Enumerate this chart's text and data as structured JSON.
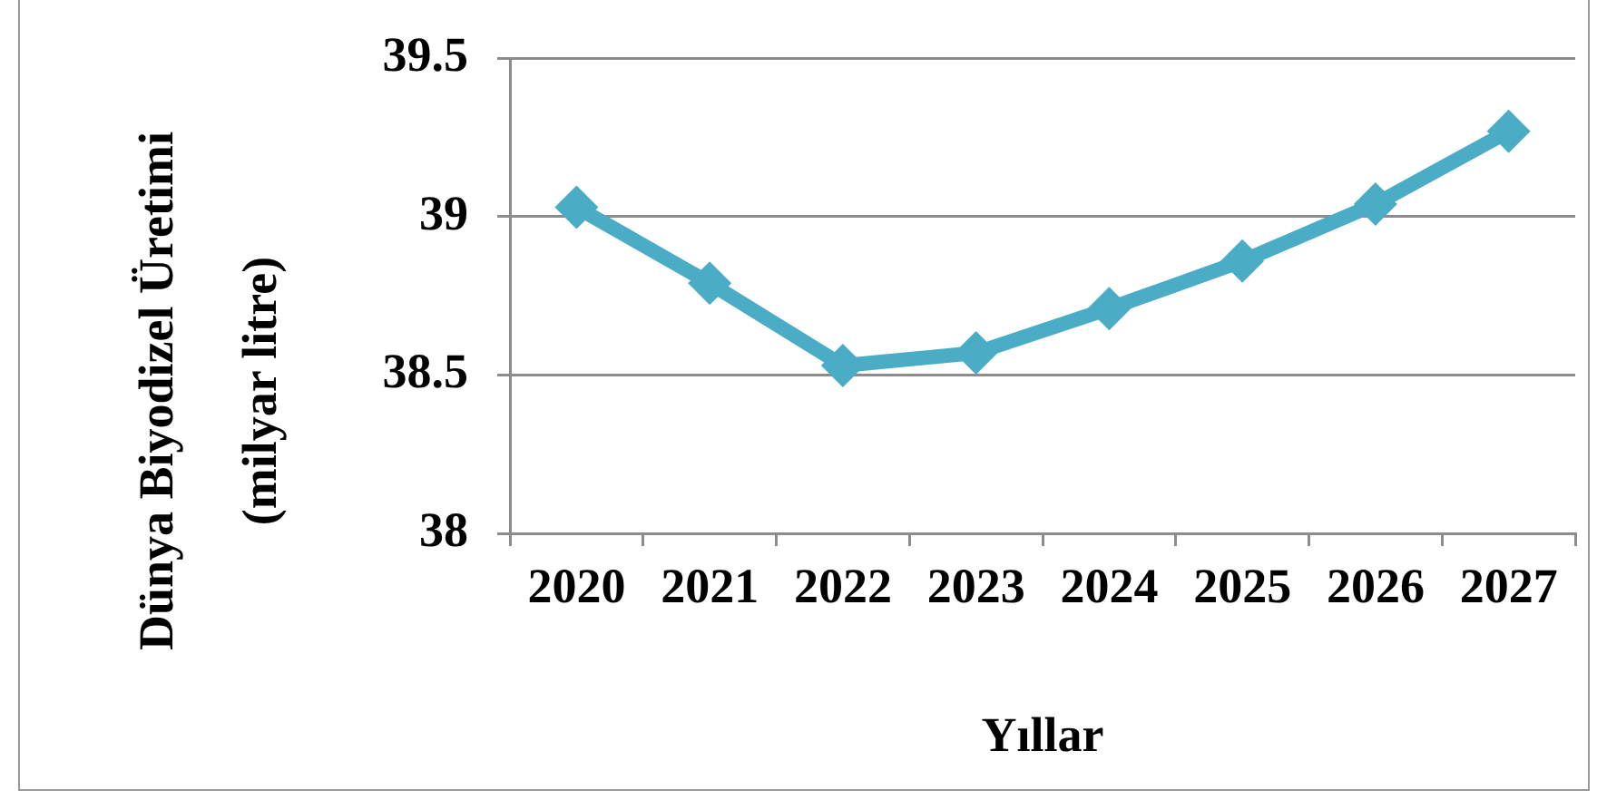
{
  "chart_data": {
    "type": "line",
    "xlabel": "Yıllar",
    "ylabel": "Dünya Biyodizel Üretimi\n(milyar litre)",
    "categories": [
      "2020",
      "2021",
      "2022",
      "2023",
      "2024",
      "2025",
      "2026",
      "2027"
    ],
    "values": [
      39.03,
      38.79,
      38.53,
      38.57,
      38.71,
      38.86,
      39.04,
      39.27
    ],
    "color": "#4bacc6",
    "ylim": [
      38,
      39.5
    ],
    "yticks": [
      38,
      38.5,
      39,
      39.5
    ],
    "grid": "y",
    "marker": "diamond",
    "line_style": "solid"
  }
}
